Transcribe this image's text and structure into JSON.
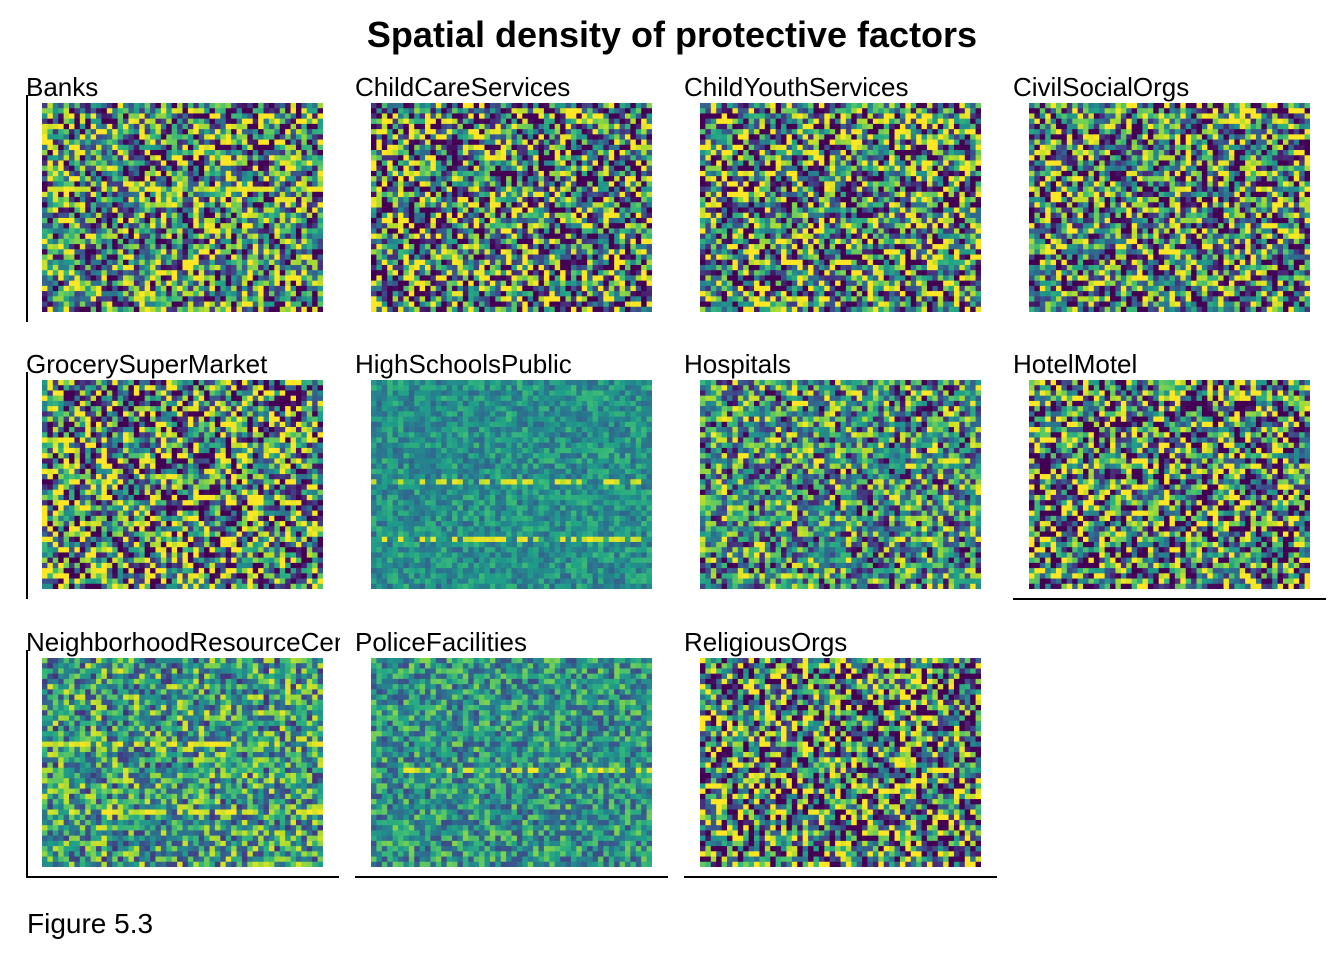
{
  "figure": {
    "title": "Spatial density of protective factors",
    "caption": "Figure 5.3"
  },
  "chart_data": {
    "type": "heatmap",
    "title": "Spatial density of protective factors",
    "colormap": "viridis",
    "colors": {
      "low": "#440154",
      "mid": "#21908C",
      "high": "#FDE725"
    },
    "grid": {
      "rows": 40,
      "cols": 52
    },
    "panels": [
      {
        "name": "Banks",
        "mean": 0.5,
        "spread": 0.85,
        "hstreak": [
          16
        ]
      },
      {
        "name": "ChildCareServices",
        "mean": 0.45,
        "spread": 1.0,
        "hstreak": []
      },
      {
        "name": "ChildYouthServices",
        "mean": 0.48,
        "spread": 0.95,
        "hstreak": []
      },
      {
        "name": "CivilSocialOrgs",
        "mean": 0.48,
        "spread": 0.9,
        "hstreak": []
      },
      {
        "name": "GrocerySuperMarket",
        "mean": 0.5,
        "spread": 0.95,
        "hstreak": []
      },
      {
        "name": "HighSchoolsPublic",
        "mean": 0.5,
        "spread": 0.25,
        "hstreak": [
          19,
          30
        ]
      },
      {
        "name": "Hospitals",
        "mean": 0.5,
        "spread": 0.7,
        "hstreak": []
      },
      {
        "name": "HotelMotel",
        "mean": 0.45,
        "spread": 0.95,
        "hstreak": []
      },
      {
        "name": "NeighborhoodResourceCenters",
        "mean": 0.55,
        "spread": 0.55,
        "hstreak": [
          16,
          29
        ]
      },
      {
        "name": "PoliceFacilities",
        "mean": 0.52,
        "spread": 0.4,
        "hstreak": [
          21
        ]
      },
      {
        "name": "ReligiousOrgs",
        "mean": 0.45,
        "spread": 1.0,
        "hstreak": []
      }
    ]
  }
}
